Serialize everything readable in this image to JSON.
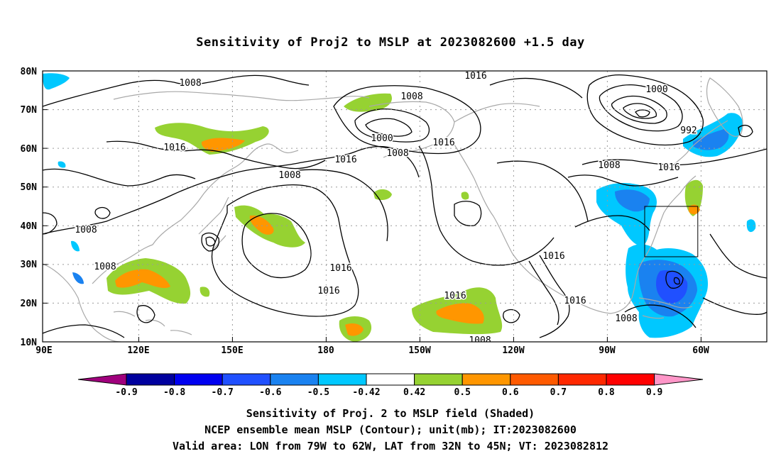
{
  "title": "Sensitivity of Proj2 to MSLP at 2023082600 +1.5 day",
  "map": {
    "lat_labels": [
      "80N",
      "70N",
      "60N",
      "50N",
      "40N",
      "30N",
      "20N",
      "10N"
    ],
    "lon_labels": [
      "90E",
      "120E",
      "150E",
      "180",
      "150W",
      "120W",
      "90W",
      "60W"
    ],
    "extent": {
      "lon_west": "90E",
      "lon_east": "40W",
      "lat_south": "10N",
      "lat_north": "80N"
    },
    "grid": "dotted",
    "coastline_color": "#a8a8a8",
    "contour_color": "#000000",
    "valid_area_box": {
      "lon_from": "79W",
      "lon_to": "62W",
      "lat_from": "32N",
      "lat_to": "45N"
    },
    "contour_labels": [
      "1008",
      "1016",
      "1008",
      "1000",
      "1008",
      "1016",
      "1008",
      "1016",
      "1016",
      "1000",
      "992",
      "1008",
      "1016",
      "1008",
      "1008",
      "1016",
      "1016",
      "1016",
      "1016",
      "1016",
      "1008",
      "1008"
    ]
  },
  "colorbar": {
    "labels": [
      "-0.9",
      "-0.8",
      "-0.7",
      "-0.6",
      "-0.5",
      "-0.42",
      "0.42",
      "0.5",
      "0.6",
      "0.7",
      "0.8",
      "0.9"
    ],
    "colors": [
      "#a0007d",
      "#00009e",
      "#0000f0",
      "#2050ff",
      "#1a82f0",
      "#00c8ff",
      "#ffffff",
      "#96d232",
      "#ff9600",
      "#ff5a00",
      "#ff2800",
      "#ff0000",
      "#ff96c8"
    ]
  },
  "shading_colors": {
    "pos1": "#96d232",
    "pos2": "#ff9600",
    "pos3": "#ff5a00",
    "neg1": "#00c8ff",
    "neg2": "#1a82f0",
    "neg3": "#2050ff",
    "neg4": "#0000f0"
  },
  "captions": {
    "line1": "Sensitivity of Proj. 2 to MSLP field (Shaded)",
    "line2": "NCEP ensemble mean MSLP (Contour); unit(mb); IT:2023082600",
    "line3": "Valid area: LON from 79W to 62W, LAT from 32N to 45N; VT: 2023082812"
  }
}
